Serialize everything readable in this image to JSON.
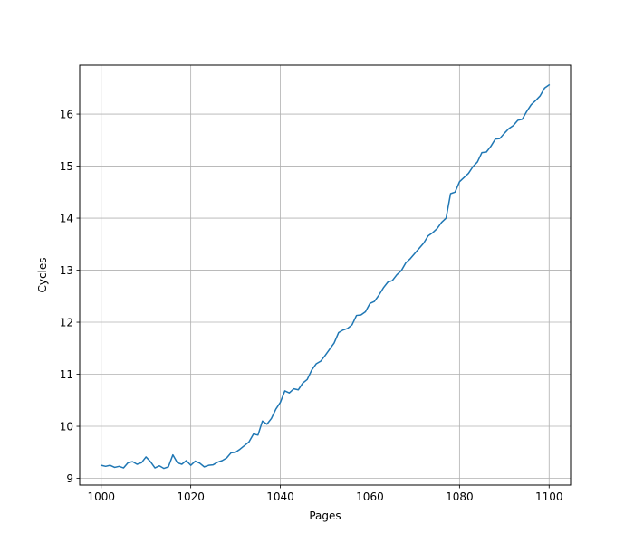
{
  "chart_data": {
    "type": "line",
    "title": "",
    "xlabel": "Pages",
    "ylabel": "Cycles",
    "xlim": [
      995.2,
      1104.8
    ],
    "ylim": [
      8.87,
      16.94
    ],
    "xticks": [
      1000,
      1020,
      1040,
      1060,
      1080,
      1100
    ],
    "yticks": [
      9,
      10,
      11,
      12,
      13,
      14,
      15,
      16
    ],
    "grid": true,
    "line_color": "#1f77b4",
    "series": [
      {
        "x": [
          1000,
          1001,
          1002,
          1003,
          1004,
          1005,
          1006,
          1007,
          1008,
          1009,
          1010,
          1011,
          1012,
          1013,
          1014,
          1015,
          1016,
          1017,
          1018,
          1019,
          1020,
          1021,
          1022,
          1023,
          1024,
          1025,
          1026,
          1027,
          1028,
          1029,
          1030,
          1031,
          1032,
          1033,
          1034,
          1035,
          1036,
          1037,
          1038,
          1039,
          1040,
          1041,
          1042,
          1043,
          1044,
          1045,
          1046,
          1047,
          1048,
          1049,
          1050,
          1051,
          1052,
          1053,
          1054,
          1055,
          1056,
          1057,
          1058,
          1059,
          1060,
          1061,
          1062,
          1063,
          1064,
          1065,
          1066,
          1067,
          1068,
          1069,
          1070,
          1071,
          1072,
          1073,
          1074,
          1075,
          1076,
          1077,
          1078,
          1079,
          1080,
          1081,
          1082,
          1083,
          1084,
          1085,
          1086,
          1087,
          1088,
          1089,
          1090,
          1091,
          1092,
          1093,
          1094,
          1095,
          1096,
          1097,
          1098,
          1099,
          1100
        ],
        "y": [
          9.25,
          9.23,
          9.25,
          9.21,
          9.23,
          9.2,
          9.3,
          9.32,
          9.27,
          9.3,
          9.41,
          9.32,
          9.2,
          9.24,
          9.19,
          9.22,
          9.45,
          9.3,
          9.27,
          9.34,
          9.25,
          9.33,
          9.29,
          9.22,
          9.25,
          9.26,
          9.31,
          9.34,
          9.39,
          9.49,
          9.5,
          9.56,
          9.63,
          9.7,
          9.85,
          9.83,
          10.1,
          10.04,
          10.15,
          10.33,
          10.46,
          10.68,
          10.64,
          10.72,
          10.7,
          10.83,
          10.9,
          11.08,
          11.2,
          11.25,
          11.36,
          11.48,
          11.6,
          11.8,
          11.85,
          11.88,
          11.95,
          12.13,
          12.14,
          12.2,
          12.36,
          12.4,
          12.52,
          12.66,
          12.77,
          12.8,
          12.91,
          12.99,
          13.14,
          13.22,
          13.32,
          13.42,
          13.52,
          13.66,
          13.72,
          13.8,
          13.92,
          14.0,
          14.47,
          14.5,
          14.7,
          14.78,
          14.86,
          14.99,
          15.08,
          15.26,
          15.27,
          15.38,
          15.52,
          15.53,
          15.63,
          15.72,
          15.78,
          15.88,
          15.9,
          16.05,
          16.18,
          16.26,
          16.35,
          16.5,
          16.56
        ]
      }
    ]
  }
}
